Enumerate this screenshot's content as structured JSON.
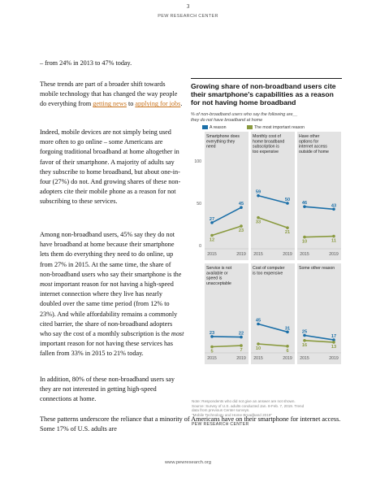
{
  "page": {
    "number": "3",
    "header": "PEW RESEARCH CENTER",
    "footer_url": "www.pewresearch.org"
  },
  "body": {
    "line1": "– from 24% in 2013 to 47% today.",
    "para1_pre": "These trends are part of a broader shift towards mobile technology that has changed the way people do everything from ",
    "para1_link1": "getting news",
    "para1_mid": " to ",
    "para1_link2": "applying for jobs",
    "para1_post": ".",
    "para2": "Indeed, mobile devices are not simply being used more often to go online – some Americans are forgoing traditional broadband at home altogether in favor of their smartphone. A majority of adults say they subscribe to home broadband, but about one-in-four (27%) do not. And growing shares of these non-adopters cite their mobile phone as a reason for not subscribing to these services.",
    "para3_a": "Among non-broadband users, 45% say they do not have broadband at home because their smartphone lets them do everything they need to do online, up from 27% in 2015. At the same time, the share of non-broadband users who say their smartphone is the ",
    "para3_em1": "most",
    "para3_b": " important reason for not having a high-speed internet connection where they live has nearly doubled over the same time period (from 12% to 23%). And while affordability remains a commonly cited barrier, the share of non-broadband adopters who say the cost of a monthly subscription is the ",
    "para3_em2": "most",
    "para3_c": " important reason for not having these services has fallen from 33% in 2015 to 21% today.",
    "para4": "In addition, 80% of these non-broadband users say they are not interested in getting high-speed connections at home.",
    "para5": "These patterns underscore the reliance that a minority of Americans have on their smartphone for internet access. Some 17% of U.S. adults are"
  },
  "chart": {
    "title": "Growing share of non-broadband users cite their smartphone's capabilities as a reason for not having home broadband",
    "subtitle_line1": "% of non-broadband users who say the following are__",
    "subtitle_line2": "they do not have broadband at home",
    "legend": {
      "a_reason": "A reason",
      "most_important": "The most important reason"
    },
    "colors": {
      "a_reason": "#1b6fa8",
      "most_important": "#8a9a3f",
      "panel_bg": "#e3e3e3"
    },
    "note_line1": "Note: Respondents who did not give an answer are not shown.",
    "note_line2": "Source: Survey of U.S. adults conducted Jan. 8-Feb. 7, 2019. Trend",
    "note_line3": "data from previous Center surveys.",
    "note_line4": "\"Mobile Technology and Home Broadband 2019\"",
    "brand": "PEW RESEARCH CENTER"
  },
  "chart_data": {
    "type": "line",
    "x": [
      "2015",
      "2019"
    ],
    "ylim": [
      0,
      100
    ],
    "yticks": [
      "0",
      "50",
      "100"
    ],
    "panels": [
      {
        "label": "Smartphone does everything they need",
        "series": [
          {
            "name": "A reason",
            "values": [
              27,
              45
            ]
          },
          {
            "name": "The most important reason",
            "values": [
              12,
              23
            ]
          }
        ]
      },
      {
        "label": "Monthly cost of home broadband subscription is too expensive",
        "series": [
          {
            "name": "A reason",
            "values": [
              59,
              50
            ]
          },
          {
            "name": "The most important reason",
            "values": [
              33,
              21
            ]
          }
        ]
      },
      {
        "label": "Have other options for internet access outside of home",
        "series": [
          {
            "name": "A reason",
            "values": [
              46,
              43
            ]
          },
          {
            "name": "The most important reason",
            "values": [
              10,
              11
            ]
          }
        ]
      },
      {
        "label": "Service is not available or speed is unacceptable",
        "series": [
          {
            "name": "A reason",
            "values": [
              23,
              22
            ]
          },
          {
            "name": "The most important reason",
            "values": [
              5,
              7
            ]
          }
        ]
      },
      {
        "label": "Cost of computer is too expensive",
        "series": [
          {
            "name": "A reason",
            "values": [
              45,
              31
            ]
          },
          {
            "name": "The most important reason",
            "values": [
              10,
              6
            ]
          }
        ]
      },
      {
        "label": "Some other reason",
        "series": [
          {
            "name": "A reason",
            "values": [
              25,
              17
            ]
          },
          {
            "name": "The most important reason",
            "values": [
              16,
              13
            ]
          }
        ]
      }
    ]
  }
}
